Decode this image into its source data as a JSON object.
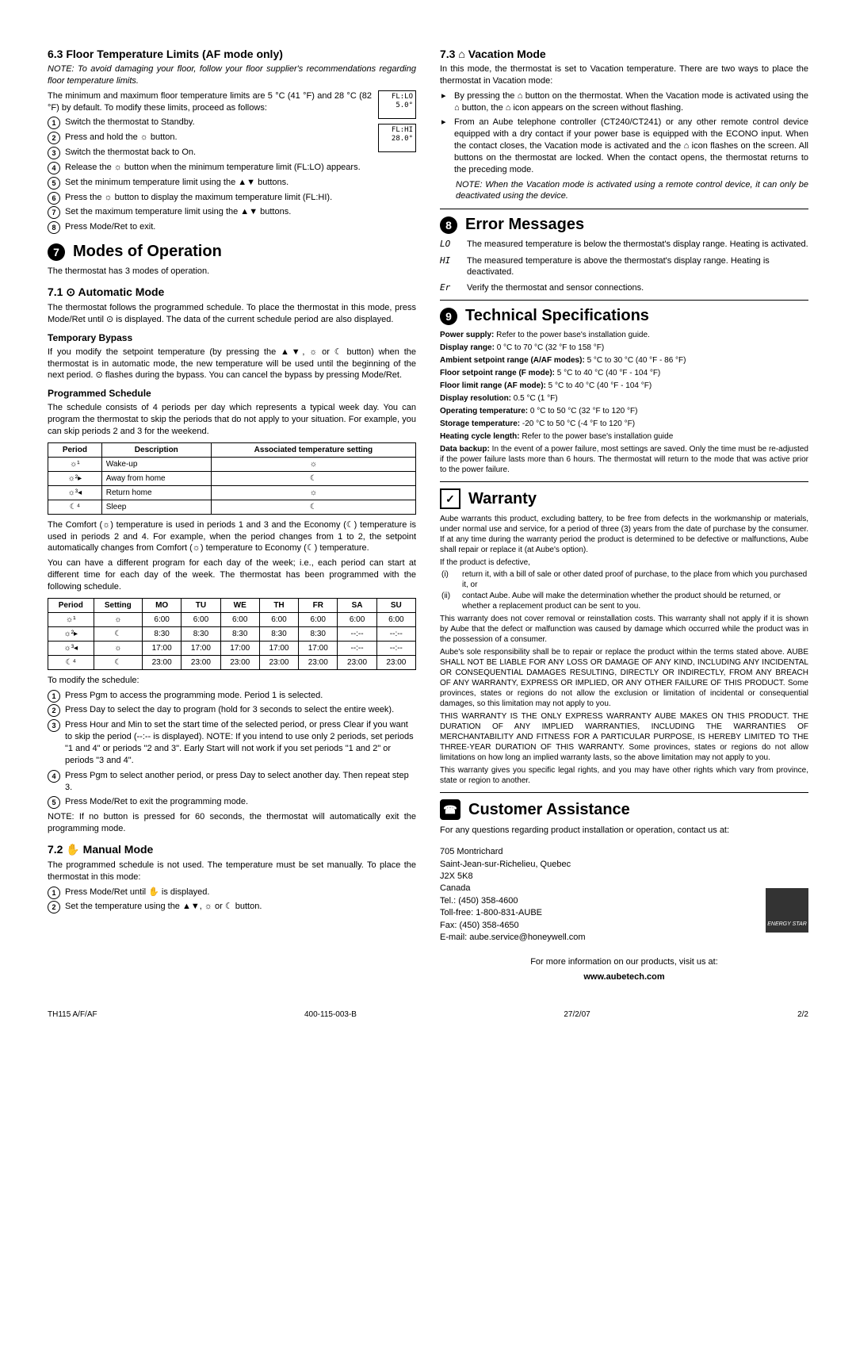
{
  "left": {
    "s63": {
      "heading": "6.3    Floor Temperature Limits (AF mode only)",
      "note": "NOTE: To avoid damaging your floor, follow your floor supplier's recommendations regarding floor temperature limits.",
      "intro": "The minimum and maximum floor temperature limits are 5 °C (41 °F) and 28 °C (82 °F) by default. To modify these limits, proceed as follows:",
      "lcd1_l1": "FL:LO",
      "lcd1_l2": "5.0°",
      "lcd2_l1": "FL:HI",
      "lcd2_l2": "28.0°",
      "steps": [
        "Switch the thermostat to Standby.",
        "Press and hold the ☼ button.",
        "Switch the thermostat back to On.",
        "Release the ☼ button when the minimum temperature limit (FL:LO) appears.",
        "Set the minimum temperature limit using the ▲▼ buttons.",
        "Press the ☼ button to display the maximum temperature limit (FL:HI).",
        "Set the maximum temperature limit using the ▲▼ buttons.",
        "Press Mode/Ret to exit."
      ]
    },
    "s7": {
      "title": "Modes of Operation",
      "num": "7",
      "intro": "The thermostat has 3 modes of operation."
    },
    "s71": {
      "heading": "7.1    ⊙ Automatic Mode",
      "p1": "The thermostat follows the programmed schedule. To place the thermostat in this mode, press Mode/Ret until ⊙ is displayed. The data of the current schedule period are also displayed.",
      "byp_h": "Temporary Bypass",
      "byp_p": "If you modify the setpoint temperature (by pressing the ▲▼, ☼ or ☾ button) when the thermostat is in automatic mode, the new temperature will be used until the beginning of the next period. ⊙ flashes during the bypass. You can cancel the bypass by pressing Mode/Ret.",
      "sch_h": "Programmed Schedule",
      "sch_p": "The schedule consists of 4 periods per day which represents a typical week day. You can program the thermostat to skip the periods that do not apply to your situation. For example, you can skip periods 2 and 3 for the weekend.",
      "t1": {
        "headers": [
          "Period",
          "Description",
          "Associated temperature setting"
        ],
        "rows": [
          [
            "☼¹",
            "Wake-up",
            "☼"
          ],
          [
            "☼²▸",
            "Away from home",
            "☾"
          ],
          [
            "☼³◂",
            "Return home",
            "☼"
          ],
          [
            "☾⁴",
            "Sleep",
            "☾"
          ]
        ]
      },
      "after_t1": "The Comfort (☼) temperature is used in periods 1 and 3 and the Economy (☾) temperature is used in periods 2 and 4. For example, when the period changes from 1 to 2, the setpoint automatically changes from Comfort (☼) temperature to Economy (☾) temperature.",
      "after_t1b": "You can have a different program for each day of the week; i.e., each period can start at different time for each day of the week. The thermostat has been programmed with the following schedule.",
      "t2": {
        "headers": [
          "Period",
          "Setting",
          "MO",
          "TU",
          "WE",
          "TH",
          "FR",
          "SA",
          "SU"
        ],
        "rows": [
          [
            "☼¹",
            "☼",
            "6:00",
            "6:00",
            "6:00",
            "6:00",
            "6:00",
            "6:00",
            "6:00"
          ],
          [
            "☼²▸",
            "☾",
            "8:30",
            "8:30",
            "8:30",
            "8:30",
            "8:30",
            "--:--",
            "--:--"
          ],
          [
            "☼³◂",
            "☼",
            "17:00",
            "17:00",
            "17:00",
            "17:00",
            "17:00",
            "--:--",
            "--:--"
          ],
          [
            "☾⁴",
            "☾",
            "23:00",
            "23:00",
            "23:00",
            "23:00",
            "23:00",
            "23:00",
            "23:00"
          ]
        ]
      },
      "mod_h": "To modify the schedule:",
      "mod_steps": [
        "Press Pgm to access the programming mode. Period 1 is selected.",
        "Press Day to select the day to program (hold for 3 seconds to select the entire week).",
        "Press Hour and Min to set the start time of the selected period, or press Clear if you want to skip the period (--:-- is displayed). NOTE: If you intend to use only 2 periods, set periods \"1 and 4\" or periods \"2 and 3\". Early Start will not work if you set periods \"1 and 2\" or periods \"3 and 4\".",
        "Press Pgm to select another period, or press Day to select another day. Then repeat step 3.",
        "Press Mode/Ret to exit the programming mode."
      ],
      "mod_note": "NOTE: If no button is pressed for 60 seconds, the thermostat will automatically exit the programming mode."
    },
    "s72": {
      "heading": "7.2    ✋ Manual Mode",
      "p": "The programmed schedule is not used. The temperature must be set manually. To place the thermostat in this mode:",
      "steps": [
        "Press Mode/Ret until ✋ is displayed.",
        "Set the temperature using the ▲▼, ☼ or ☾ button."
      ]
    }
  },
  "right": {
    "s73": {
      "heading": "7.3    ⌂ Vacation Mode",
      "p1": "In this mode, the thermostat is set to Vacation temperature. There are two ways to place the thermostat in Vacation mode:",
      "bullets": [
        "By pressing the ⌂ button on the thermostat. When the Vacation mode is activated using the ⌂ button, the ⌂ icon appears on the screen without flashing.",
        "From an Aube telephone controller (CT240/CT241) or any other remote control device equipped with a dry contact if your power base is equipped with the ECONO input. When the contact closes, the Vacation mode is activated and the ⌂ icon flashes on the screen. All buttons on the thermostat are locked. When the contact opens, the thermostat returns to the preceding mode."
      ],
      "note": "NOTE: When the Vacation mode is activated using a remote control device, it can only be deactivated using the device."
    },
    "s8": {
      "num": "8",
      "title": "Error Messages",
      "rows": [
        {
          "code": "LO",
          "text": "The measured temperature is below the thermostat's display range. Heating is activated."
        },
        {
          "code": "HI",
          "text": "The measured temperature is above the thermostat's display range. Heating is deactivated."
        },
        {
          "code": "Er",
          "text": "Verify the thermostat and sensor connections."
        }
      ]
    },
    "s9": {
      "num": "9",
      "title": "Technical Specifications",
      "lines": [
        "Power supply: Refer to the power base's installation guide.",
        "Display range: 0 °C to 70 °C (32 °F to 158 °F)",
        "Ambient setpoint range (A/AF modes): 5 °C to 30 °C (40 °F - 86 °F)",
        "Floor setpoint range (F mode): 5 °C to 40 °C (40 °F - 104 °F)",
        "Floor limit range (AF mode): 5 °C to 40 °C (40 °F - 104 °F)",
        "Display resolution: 0.5 °C (1 °F)",
        "Operating temperature: 0 °C to 50 °C (32 °F to 120 °F)",
        "Storage temperature: -20 °C to 50 °C (-4 °F to 120 °F)",
        "Heating cycle length: Refer to the power base's installation guide",
        "Data backup: In the event of a power failure, most settings are saved. Only the time must be re-adjusted if the power failure lasts more than 6 hours. The thermostat will return to the mode that was active prior to the power failure."
      ]
    },
    "warranty": {
      "icon": "✓",
      "title": "Warranty",
      "p1": "Aube warrants this product, excluding battery, to be free from defects in the workmanship or materials, under normal use and service, for a period of three (3) years from the date of purchase by the consumer. If at any time during the warranty period the product is determined to be defective or malfunctions, Aube shall repair or replace it (at Aube's option).",
      "p2": "If the product is defective,",
      "roman": [
        "return it, with a bill of sale or other dated proof of purchase, to the place from which you purchased it, or",
        "contact Aube. Aube will make the determination whether the product should be returned, or whether a replacement product can be sent to you."
      ],
      "p3": "This warranty does not cover removal or reinstallation costs. This warranty shall not apply if it is shown by Aube that the defect or malfunction was caused by damage which occurred while the product was in the possession of a consumer.",
      "p4": "Aube's sole responsibility shall be to repair or replace the product within the terms stated above. AUBE SHALL NOT BE LIABLE FOR ANY LOSS OR DAMAGE OF ANY KIND, INCLUDING ANY INCIDENTAL OR CONSEQUENTIAL DAMAGES RESULTING, DIRECTLY OR INDIRECTLY, FROM ANY BREACH OF ANY WARRANTY, EXPRESS OR IMPLIED, OR ANY OTHER FAILURE OF THIS PRODUCT. Some provinces, states or regions do not allow the exclusion or limitation of incidental or consequential damages, so this limitation may not apply to you.",
      "p5": "THIS WARRANTY IS THE ONLY EXPRESS WARRANTY AUBE MAKES ON THIS PRODUCT. THE DURATION OF ANY IMPLIED WARRANTIES, INCLUDING THE WARRANTIES OF MERCHANTABILITY AND FITNESS FOR A PARTICULAR PURPOSE, IS HEREBY LIMITED TO THE THREE-YEAR DURATION OF THIS WARRANTY. Some provinces, states or regions do not allow limitations on how long an implied warranty lasts, so the above limitation may not apply to you.",
      "p6": "This warranty gives you specific legal rights, and you may have other rights which vary from province, state or region to another."
    },
    "cust": {
      "icon": "☎",
      "title": "Customer Assistance",
      "p": "For any questions regarding product installation or operation, contact us at:",
      "addr": [
        "705 Montrichard",
        "Saint-Jean-sur-Richelieu, Quebec",
        "J2X 5K8",
        "Canada",
        "Tel.: (450) 358-4600",
        "Toll-free: 1-800-831-AUBE",
        "Fax: (450) 358-4650",
        "E-mail: aube.service@honeywell.com"
      ],
      "more": "For more information on our products, visit us at:",
      "url": "www.aubetech.com",
      "estar": "ENERGY STAR"
    }
  },
  "footer": {
    "l": "TH115 A/F/AF",
    "c": "400-115-003-B",
    "d": "27/2/07",
    "r": "2/2"
  }
}
